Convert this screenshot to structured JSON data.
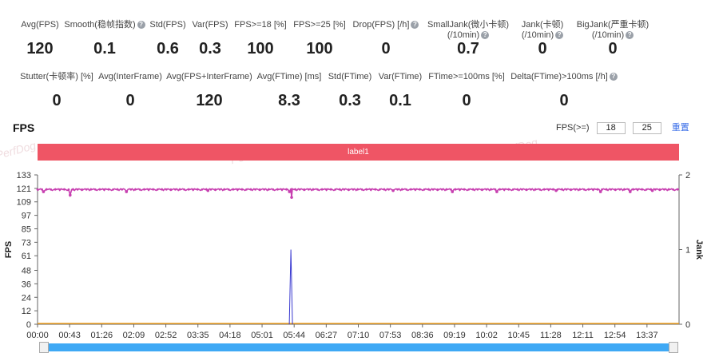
{
  "stats_row1": [
    {
      "label": "Avg(FPS)",
      "value": "120",
      "help": false
    },
    {
      "label": "Smooth(稳帧指数)",
      "value": "0.1",
      "help": true
    },
    {
      "label": "Std(FPS)",
      "value": "0.6",
      "help": false
    },
    {
      "label": "Var(FPS)",
      "value": "0.3",
      "help": false
    },
    {
      "label": "FPS>=18 [%]",
      "value": "100",
      "help": false
    },
    {
      "label": "FPS>=25 [%]",
      "value": "100",
      "help": false
    },
    {
      "label": "Drop(FPS) [/h]",
      "value": "0",
      "help": true
    },
    {
      "label": "SmallJank(微小卡顿)",
      "label2": "(/10min)",
      "value": "0.7",
      "help": true
    },
    {
      "label": "Jank(卡顿)",
      "label2": "(/10min)",
      "value": "0",
      "help": true
    },
    {
      "label": "BigJank(严重卡顿)",
      "label2": "(/10min)",
      "value": "0",
      "help": true
    }
  ],
  "stats_row2": [
    {
      "label": "Stutter(卡顿率) [%]",
      "value": "0",
      "help": false
    },
    {
      "label": "Avg(InterFrame)",
      "value": "0",
      "help": false
    },
    {
      "label": "Avg(FPS+InterFrame)",
      "value": "120",
      "help": false
    },
    {
      "label": "Avg(FTime) [ms]",
      "value": "8.3",
      "help": false
    },
    {
      "label": "Std(FTime)",
      "value": "0.3",
      "help": false
    },
    {
      "label": "Var(FTime)",
      "value": "0.1",
      "help": false
    },
    {
      "label": "FTime>=100ms [%]",
      "value": "0",
      "help": false
    },
    {
      "label": "Delta(FTime)>100ms [/h]",
      "value": "0",
      "help": true
    }
  ],
  "section_title": "FPS",
  "fps_threshold": {
    "label": "FPS(>=)",
    "values": [
      "18",
      "25"
    ],
    "reset_label": "重置"
  },
  "label_bar": "label1",
  "watermark": "PerfDog",
  "colors": {
    "fps_line": "#c73fb0",
    "jank_line": "#3a3ad0",
    "zero_line": "#f0a020",
    "label_bar": "#ef5565",
    "scroll": "#3fa9f5"
  },
  "chart_data": {
    "type": "line",
    "ylabel": "FPS",
    "y2label": "Jank",
    "yticks": [
      0,
      12,
      24,
      36,
      48,
      61,
      73,
      85,
      97,
      109,
      121,
      133
    ],
    "ylim": [
      0,
      133
    ],
    "y2ticks": [
      0,
      1,
      2
    ],
    "y2lim": [
      0,
      2
    ],
    "xticks": [
      "00:00",
      "00:43",
      "01:26",
      "02:09",
      "02:52",
      "03:35",
      "04:18",
      "05:01",
      "05:44",
      "06:27",
      "07:10",
      "07:53",
      "08:36",
      "09:19",
      "10:02",
      "10:45",
      "11:28",
      "12:11",
      "12:54",
      "13:37"
    ],
    "x_range_seconds": [
      0,
      866
    ],
    "series": [
      {
        "name": "FPS",
        "axis": "left",
        "baseline": 120,
        "dips": [
          [
            8,
            118
          ],
          [
            44,
            115
          ],
          [
            120,
            118
          ],
          [
            230,
            119
          ],
          [
            340,
            118
          ],
          [
            343,
            113
          ],
          [
            480,
            119
          ],
          [
            560,
            118
          ],
          [
            620,
            118
          ],
          [
            700,
            119
          ],
          [
            760,
            118
          ],
          [
            800,
            118
          ],
          [
            830,
            119
          ]
        ]
      },
      {
        "name": "Jank",
        "axis": "right",
        "baseline": 0,
        "spikes": [
          [
            342,
            1
          ]
        ]
      }
    ]
  }
}
